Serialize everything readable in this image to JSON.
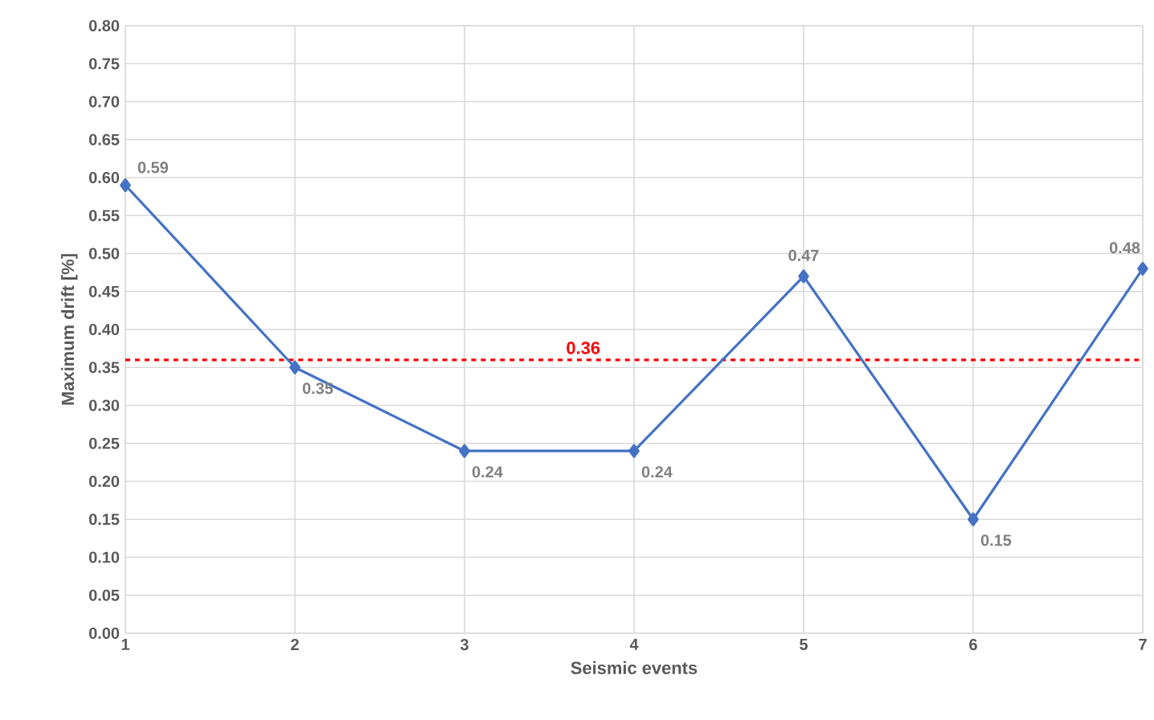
{
  "chart_data": {
    "type": "line",
    "xlabel": "Seismic events",
    "ylabel": "Maximum drift [%]",
    "x": [
      1,
      2,
      3,
      4,
      5,
      6,
      7
    ],
    "series": [
      {
        "color": "#4472c4",
        "values": [
          0.59,
          0.35,
          0.24,
          0.24,
          0.47,
          0.15,
          0.48
        ]
      }
    ],
    "xlim": [
      1,
      7
    ],
    "xticks": [
      1,
      2,
      3,
      4,
      5,
      6,
      7
    ],
    "ylim": [
      0,
      0.8
    ],
    "yticks": [
      {
        "value": 0,
        "label": "0.00"
      },
      {
        "value": 0.05,
        "label": "0.05"
      },
      {
        "value": 0.1,
        "label": "0.10"
      },
      {
        "value": 0.15,
        "label": "0.15"
      },
      {
        "value": 0.2,
        "label": "0.20"
      },
      {
        "value": 0.25,
        "label": "0.25"
      },
      {
        "value": 0.3,
        "label": "0.30"
      },
      {
        "value": 0.35,
        "label": "0.35"
      },
      {
        "value": 0.4,
        "label": "0.40"
      },
      {
        "value": 0.45,
        "label": "0.45"
      },
      {
        "value": 0.5,
        "label": "0.50"
      },
      {
        "value": 0.55,
        "label": "0.55"
      },
      {
        "value": 0.6,
        "label": "0.60"
      },
      {
        "value": 0.65,
        "label": "0.65"
      },
      {
        "value": 0.7,
        "label": "0.70"
      },
      {
        "value": 0.75,
        "label": "0.75"
      },
      {
        "value": 0.8,
        "label": "0.80"
      }
    ],
    "ref_lines": [
      {
        "axis": "y",
        "value": 0.36,
        "label": "0.36",
        "color": "#ff0000",
        "line_style": "dashed"
      }
    ],
    "data_labels": true,
    "grid": true,
    "marker": "diamond",
    "line_style": "solid"
  }
}
